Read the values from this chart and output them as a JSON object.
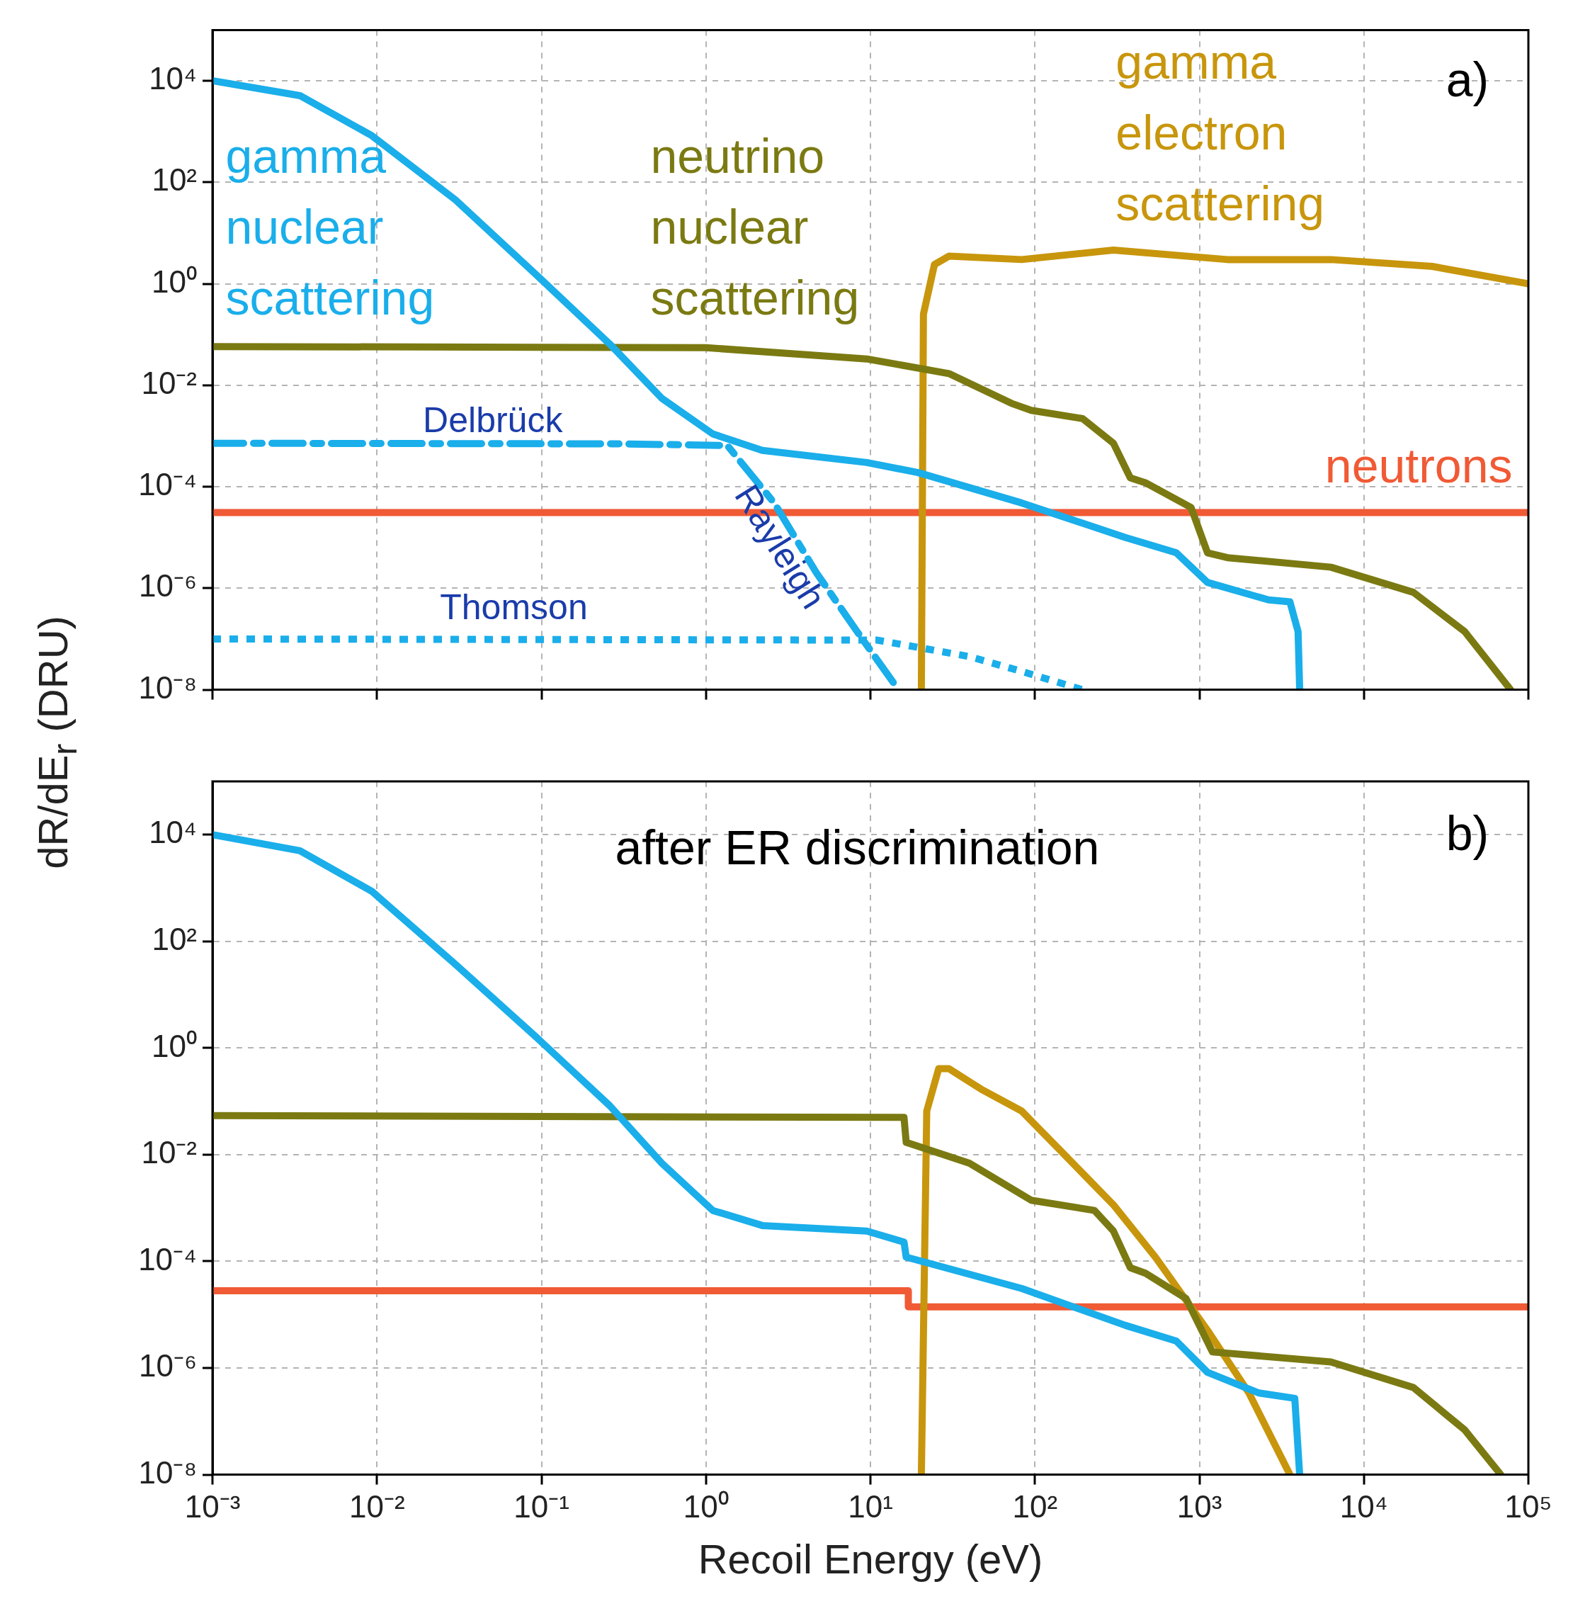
{
  "chart_data": [
    {
      "type": "line",
      "ylabel": "dR/dE$_{r}$ (DRU)",
      "log": "xy",
      "xlim": [
        0.001,
        100000
      ],
      "ylim": [
        1e-08,
        100000
      ],
      "grid": true,
      "tick_labels": "y",
      "xticks": [
        {
          "value": 0.001,
          "label": null
        },
        {
          "value": 0.01,
          "label": null
        },
        {
          "value": 0.1,
          "label": null
        },
        {
          "value": 1,
          "label": null
        },
        {
          "value": 10,
          "label": null
        },
        {
          "value": 100,
          "label": null
        },
        {
          "value": 1000,
          "label": null
        },
        {
          "value": 10000,
          "label": null
        },
        {
          "value": 100000,
          "label": null
        }
      ],
      "yticks": [
        {
          "value": 1e-08,
          "label": "10⁻⁸"
        },
        {
          "value": 1e-06,
          "label": "10⁻⁶"
        },
        {
          "value": 0.0001,
          "label": "10⁻⁴"
        },
        {
          "value": 0.01,
          "label": "10⁻²"
        },
        {
          "value": 1,
          "label": "10⁰"
        },
        {
          "value": 100,
          "label": "10²"
        },
        {
          "value": 10000,
          "label": "10⁴"
        }
      ],
      "annotations": [
        "a)",
        "Delbrück",
        "Rayleigh",
        "Thomson"
      ],
      "series": [
        {
          "name": "gamma nuclear scattering",
          "color": "#1aaeea",
          "line_style": "solid",
          "x": [
            0.001,
            0.0034,
            0.0093,
            0.03,
            0.093,
            0.26,
            0.54,
            1.1,
            2.2,
            9.5,
            19.5,
            83,
            355,
            724,
            1120,
            2630,
            3550,
            3980,
            4070
          ],
          "values": [
            10000,
            5100,
            830,
            45,
            1.5,
            0.065,
            0.0055,
            0.0011,
            0.00052,
            0.0003,
            0.00019,
            4.8e-05,
            1e-05,
            5e-06,
            1.3e-06,
            5.9e-07,
            5.4e-07,
            1.4e-07,
            1e-08
          ]
        },
        {
          "color": "#1aaeea",
          "line_style": "dashed",
          "x": [
            0.001,
            0.3,
            1.35,
            2.6,
            4.7,
            8.3,
            14.8
          ],
          "values": [
            0.00072,
            0.0007,
            0.00065,
            4.8e-05,
            2e-06,
            1.4e-07,
            1e-08
          ]
        },
        {
          "color": "#1aaeea",
          "line_style": "dotted",
          "x": [
            0.001,
            11,
            40,
            83,
            195
          ],
          "values": [
            1e-07,
            9.5e-08,
            4.5e-08,
            2.3e-08,
            1e-08
          ]
        },
        {
          "name": "neutrino nuclear scattering",
          "color": "#7b7a12",
          "line_style": "solid",
          "x": [
            0.001,
            1,
            9.5,
            30,
            72,
            95,
            195,
            300,
            380,
            470,
            890,
            1120,
            1480,
            6300,
            20000,
            41000,
            78000
          ],
          "values": [
            0.058,
            0.055,
            0.033,
            0.017,
            0.0044,
            0.0032,
            0.0022,
            0.00072,
            0.00015,
            0.00012,
            3.9e-05,
            5e-06,
            4e-06,
            2.6e-06,
            8.3e-07,
            1.4e-07,
            1e-08
          ]
        },
        {
          "name": "gamma electron scattering",
          "color": "#c8960c",
          "line_style": "solid",
          "x": [
            20.4,
            21,
            24.5,
            30,
            83,
            300,
            1480,
            6300,
            26000,
            100000
          ],
          "values": [
            1e-08,
            0.25,
            2.4,
            3.5,
            3,
            4.6,
            3,
            3,
            2.2,
            1
          ]
        },
        {
          "name": "neutrons",
          "color": "#f05a35",
          "line_style": "solid",
          "x": [
            0.001,
            100000
          ],
          "values": [
            3.1e-05,
            3.1e-05
          ]
        }
      ]
    },
    {
      "type": "line",
      "xlabel": "Recoil Energy (eV)",
      "log": "xy",
      "xlim": [
        0.001,
        100000
      ],
      "ylim": [
        1e-08,
        100000
      ],
      "grid": true,
      "xticks": [
        {
          "value": 0.001,
          "label": "10⁻³"
        },
        {
          "value": 0.01,
          "label": "10⁻²"
        },
        {
          "value": 0.1,
          "label": "10⁻¹"
        },
        {
          "value": 1,
          "label": "10⁰"
        },
        {
          "value": 10,
          "label": "10¹"
        },
        {
          "value": 100,
          "label": "10²"
        },
        {
          "value": 1000,
          "label": "10³"
        },
        {
          "value": 10000,
          "label": "10⁴"
        },
        {
          "value": 100000,
          "label": "10⁵"
        }
      ],
      "yticks": [
        {
          "value": 1e-08,
          "label": "10⁻⁸"
        },
        {
          "value": 1e-06,
          "label": "10⁻⁶"
        },
        {
          "value": 0.0001,
          "label": "10⁻⁴"
        },
        {
          "value": 0.01,
          "label": "10⁻²"
        },
        {
          "value": 1,
          "label": "10⁰"
        },
        {
          "value": 100,
          "label": "10²"
        },
        {
          "value": 10000,
          "label": "10⁴"
        }
      ],
      "annotations": [
        "after ER discrimination",
        "b)"
      ],
      "series": [
        {
          "color": "#1aaeea",
          "line_style": "solid",
          "x": [
            0.001,
            0.0034,
            0.0093,
            0.03,
            0.093,
            0.26,
            0.54,
            1.1,
            2.2,
            9.5,
            16,
            16.5,
            83,
            355,
            724,
            1120,
            2300,
            3800,
            4070
          ],
          "values": [
            10000,
            5000,
            870,
            37,
            1.6,
            0.083,
            0.0069,
            0.0009,
            0.00047,
            0.00037,
            0.00023,
            0.00012,
            3.1e-05,
            6.3e-06,
            3.2e-06,
            8.3e-07,
            3.4e-07,
            2.7e-07,
            1e-08
          ]
        },
        {
          "color": "#7b7a12",
          "line_style": "solid",
          "x": [
            0.001,
            16,
            16.5,
            40,
            95,
            230,
            300,
            380,
            470,
            830,
            1200,
            6300,
            20000,
            41000,
            68000
          ],
          "values": [
            0.054,
            0.05,
            0.017,
            0.0069,
            0.0014,
            0.0009,
            0.00037,
            7.6e-05,
            6e-05,
            2e-05,
            2e-06,
            1.3e-06,
            4.3e-07,
            6.9e-08,
            1e-08
          ]
        },
        {
          "color": "#c8960c",
          "line_style": "solid",
          "x": [
            20.4,
            22,
            26,
            30,
            47,
            83,
            170,
            300,
            540,
            1120,
            2000,
            3550
          ],
          "values": [
            1e-08,
            0.066,
            0.41,
            0.41,
            0.17,
            0.066,
            0.0069,
            0.00115,
            0.00012,
            5.1e-06,
            3.4e-07,
            1e-08
          ]
        },
        {
          "color": "#f05a35",
          "line_style": "solid",
          "x": [
            0.001,
            17,
            17,
            100000
          ],
          "values": [
            2.8e-05,
            2.8e-05,
            1.4e-05,
            1.4e-05
          ]
        }
      ]
    }
  ]
}
